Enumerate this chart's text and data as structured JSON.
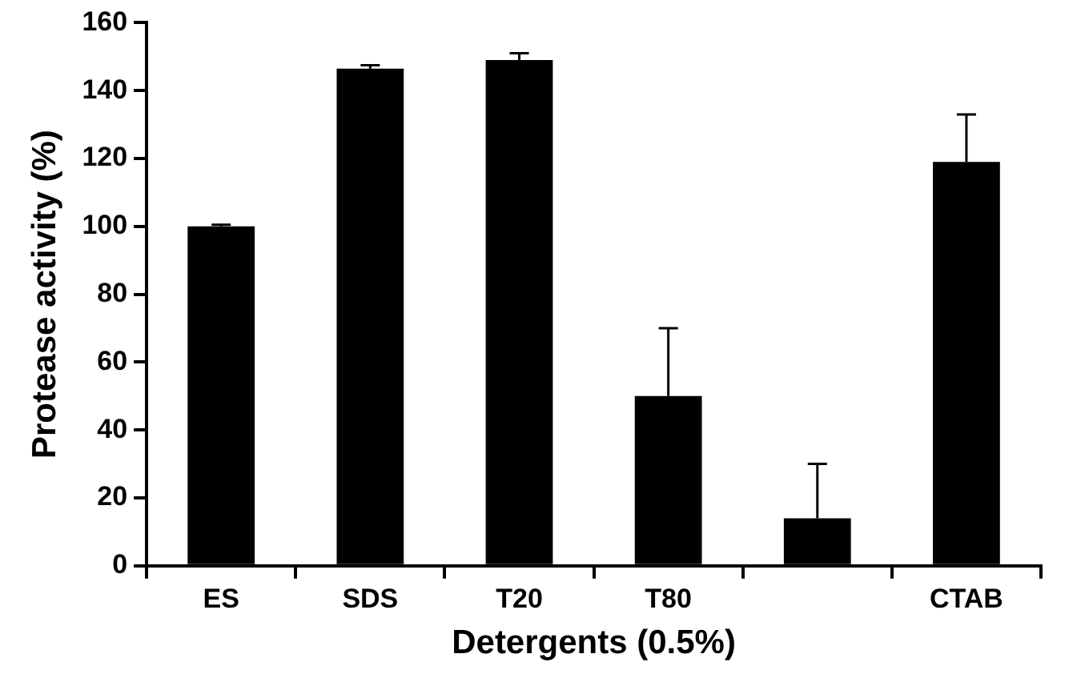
{
  "chart_data": {
    "type": "bar",
    "xlabel": "Detergents (0.5%)",
    "ylabel": "Protease activity (%)",
    "categories": [
      "ES",
      "SDS",
      "T20",
      "T80",
      null,
      "CTAB"
    ],
    "values": [
      100,
      146.5,
      149,
      50,
      14,
      119
    ],
    "errors": [
      [
        100,
        100.5
      ],
      [
        146.5,
        147.5
      ],
      [
        149,
        151
      ],
      [
        50,
        70
      ],
      [
        14,
        30
      ],
      [
        119,
        133
      ]
    ],
    "color": "#000000",
    "ylim": [
      0,
      160
    ],
    "yticks": [
      0,
      20,
      40,
      60,
      80,
      100,
      120,
      140,
      160
    ],
    "grid": false,
    "legend": false
  }
}
